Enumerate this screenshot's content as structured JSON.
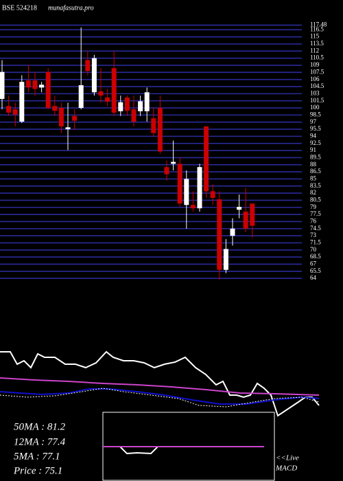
{
  "header": {
    "symbol": "BSE 524218",
    "site": "munafasutra.pro"
  },
  "stats": [
    "50MA : 81.2",
    "12MA : 77.4",
    "5MA : 77.1",
    "Price  : 75.1"
  ],
  "live": "<<Live",
  "macd_label": "MACD",
  "chart_data": [
    {
      "type": "candlestick",
      "up_color": "#ffffff",
      "down_color": "#cc0000",
      "grid_color": "#2a2a9a",
      "ylim": [
        63,
        118
      ],
      "yticks": [
        64,
        65.5,
        67,
        68.5,
        70,
        71.5,
        73,
        74.5,
        76,
        77.5,
        79,
        80.5,
        82,
        83.5,
        85,
        86.5,
        88,
        89.5,
        91,
        92.5,
        94,
        95.5,
        97,
        98.5,
        100,
        101.5,
        103,
        104.5,
        106,
        107.5,
        109,
        110.5,
        112,
        113.5,
        115,
        116.5,
        117.48
      ],
      "open": [
        101.9,
        100.4,
        99.7,
        97.1,
        105.8,
        105.8,
        104.3,
        107.6,
        100.4,
        100.0,
        95.5,
        98.3,
        100.0,
        110.1,
        103.3,
        103.5,
        102.2,
        108.4,
        99.3,
        102.2,
        99.7,
        99.3,
        99.3,
        97.8,
        100.0,
        87.5,
        88.2,
        88.2,
        79.5,
        79.5,
        78.8,
        96.1,
        82.4,
        80.7,
        65.8,
        73.0,
        78.5,
        78.1,
        79.8
      ],
      "high": [
        110.1,
        102.6,
        101.1,
        106.9,
        109.1,
        107.6,
        105.5,
        108.4,
        102.6,
        101.1,
        101.1,
        99.7,
        117.0,
        112.0,
        111.2,
        108.4,
        104.0,
        112.0,
        102.6,
        102.6,
        102.6,
        102.6,
        104.3,
        100.0,
        102.6,
        88.9,
        93.1,
        89.6,
        86.8,
        82.4,
        88.2,
        96.1,
        83.9,
        82.4,
        72.3,
        76.7,
        81.7,
        83.1,
        79.8
      ],
      "low": [
        99.7,
        98.3,
        96.1,
        96.8,
        103.3,
        102.6,
        103.3,
        99.7,
        98.3,
        94.7,
        91.1,
        95.4,
        99.7,
        106.9,
        102.6,
        101.1,
        100.4,
        98.3,
        98.3,
        98.3,
        96.1,
        98.3,
        97.1,
        93.9,
        90.3,
        84.6,
        86.8,
        79.2,
        74.5,
        78.1,
        78.1,
        81.0,
        79.5,
        63.7,
        65.1,
        70.9,
        76.7,
        73.8,
        72.6
      ],
      "close": [
        107.6,
        99.0,
        98.6,
        105.5,
        104.3,
        104.0,
        104.9,
        100.0,
        99.4,
        96.1,
        95.9,
        97.3,
        104.8,
        107.8,
        110.5,
        102.6,
        101.3,
        99.0,
        101.2,
        99.4,
        97.1,
        101.4,
        103.3,
        94.7,
        90.8,
        86.0,
        88.6,
        79.8,
        85.0,
        78.8,
        87.5,
        82.4,
        81.0,
        65.8,
        70.2,
        74.5,
        79.1,
        74.5,
        75.1
      ]
    },
    {
      "type": "line",
      "xlim": [
        0,
        500
      ],
      "ylim": [
        0,
        110
      ],
      "series": [
        {
          "color": "#ffffff",
          "dash": false,
          "x": [
            0,
            15,
            25,
            35,
            45,
            55,
            65,
            80,
            95,
            110,
            125,
            140,
            155,
            165,
            180,
            195,
            210,
            225,
            240,
            255,
            270,
            285,
            300,
            315,
            325,
            335,
            345,
            355,
            365,
            375,
            385,
            395,
            405,
            420,
            435,
            445,
            455,
            465
          ],
          "values": [
            98,
            98,
            80,
            85,
            75,
            95,
            90,
            90,
            80,
            80,
            75,
            82,
            98,
            90,
            85,
            85,
            82,
            75,
            80,
            83,
            90,
            75,
            65,
            50,
            55,
            35,
            35,
            32,
            35,
            52,
            45,
            35,
            5,
            15,
            25,
            32,
            32,
            20
          ]
        },
        {
          "color": "#cc44cc",
          "dash": false,
          "x": [
            0,
            50,
            100,
            150,
            200,
            250,
            300,
            350,
            400,
            465
          ],
          "values": [
            60,
            57,
            55,
            52,
            50,
            47,
            43,
            38,
            37,
            35
          ]
        },
        {
          "color": "#1010cc",
          "dash": false,
          "x": [
            0,
            30,
            60,
            100,
            130,
            160,
            200,
            240,
            280,
            320,
            360,
            400,
            440,
            465
          ],
          "values": [
            40,
            38,
            36,
            38,
            44,
            44,
            40,
            35,
            28,
            22,
            22,
            28,
            32,
            30
          ]
        },
        {
          "color": "#ffffff",
          "dash": true,
          "x": [
            0,
            40,
            80,
            120,
            150,
            180,
            220,
            260,
            290,
            330,
            370,
            400,
            440,
            465
          ],
          "values": [
            35,
            32,
            34,
            40,
            45,
            40,
            35,
            30,
            20,
            18,
            25,
            30,
            32,
            25
          ]
        }
      ]
    },
    {
      "type": "line",
      "xlim": [
        150,
        400
      ],
      "ylim": [
        -50,
        50
      ],
      "series": [
        {
          "color": "#ffffff",
          "dash": false,
          "x": [
            150,
            175,
            185,
            200,
            220,
            230,
            385
          ],
          "values": [
            0,
            0,
            -10,
            -9,
            -10,
            0,
            0
          ]
        },
        {
          "color": "#cc44cc",
          "dash": false,
          "x": [
            150,
            385
          ],
          "values": [
            0,
            0
          ]
        }
      ]
    }
  ]
}
